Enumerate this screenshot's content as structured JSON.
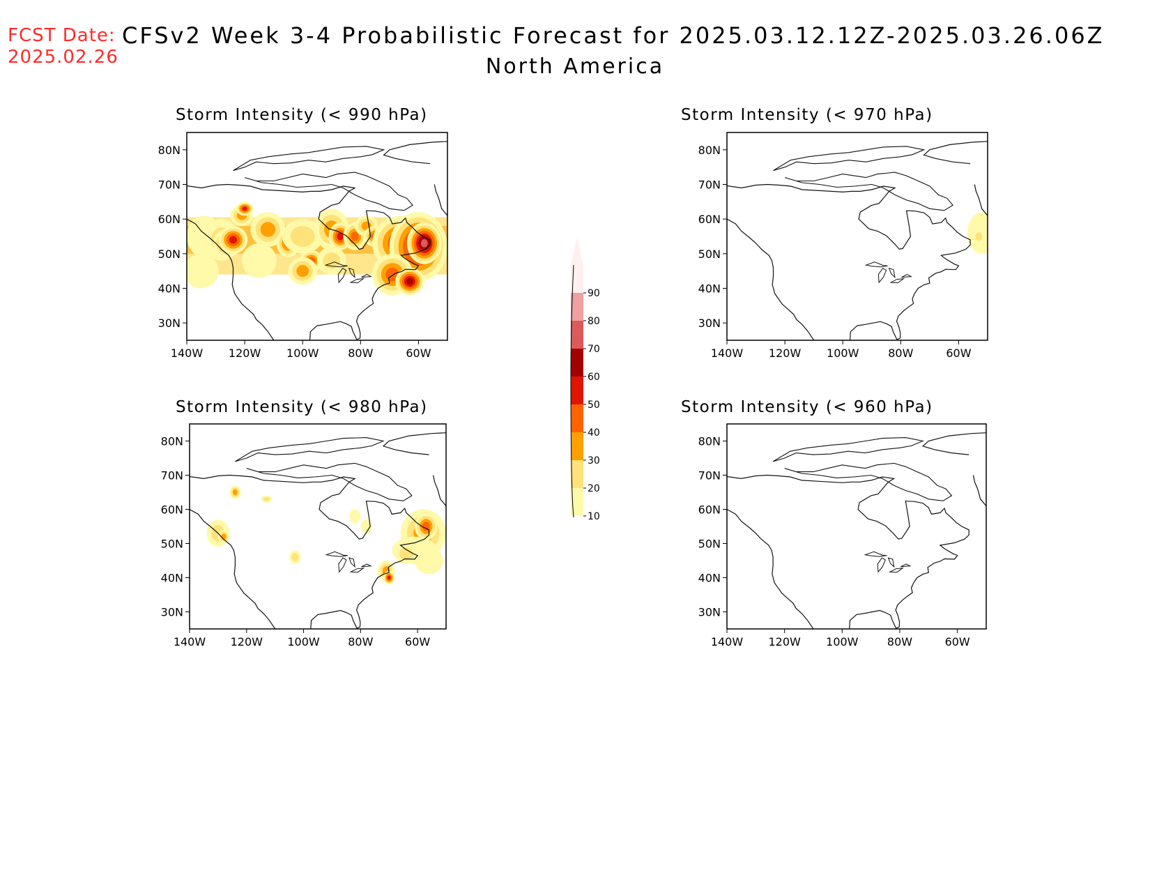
{
  "header": {
    "fcst_label": "FCST Date:",
    "fcst_date": "2025.02.26",
    "title": "CFSv2 Week 3-4 Probabilistic Forecast for 2025.03.12.12Z-2025.03.26.06Z",
    "subtitle": "North America"
  },
  "panels": [
    {
      "id": "p990",
      "title": "Storm Intensity (< 990 hPa)"
    },
    {
      "id": "p970",
      "title": "Storm Intensity (< 970 hPa)"
    },
    {
      "id": "p980",
      "title": "Storm Intensity (< 980 hPa)"
    },
    {
      "id": "p960",
      "title": "Storm Intensity (< 960 hPa)"
    }
  ],
  "axes": {
    "lat_labels": [
      "80N",
      "70N",
      "60N",
      "50N",
      "40N",
      "30N"
    ],
    "lon_labels": [
      "140W",
      "120W",
      "100W",
      "80W",
      "60W"
    ]
  },
  "colorbar": {
    "levels": [
      "10",
      "20",
      "30",
      "40",
      "50",
      "60",
      "70",
      "80",
      "90"
    ],
    "colors": [
      "#fffaaa",
      "#ffe279",
      "#ffa000",
      "#ff6400",
      "#e11400",
      "#a50000",
      "#dc5a5a",
      "#f0a0a0",
      "#fff0f0"
    ]
  }
}
